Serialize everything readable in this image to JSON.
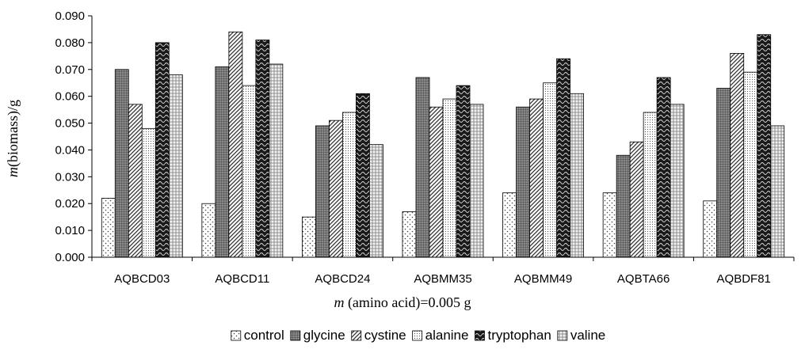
{
  "chart_data": {
    "type": "bar",
    "title": "",
    "xlabel": {
      "italic": "m",
      "rest": " (amino acid)=0.005 g"
    },
    "ylabel": {
      "italic": "m",
      "rest": "(biomass)/g"
    },
    "ylim": [
      0,
      0.09
    ],
    "yticks": [
      "0.000",
      "0.010",
      "0.020",
      "0.030",
      "0.040",
      "0.050",
      "0.060",
      "0.070",
      "0.080",
      "0.090"
    ],
    "grid": false,
    "legend_position": "bottom",
    "categories": [
      "AQBCD03",
      "AQBCD11",
      "AQBCD24",
      "AQBMM35",
      "AQBMM49",
      "AQBTA66",
      "AQBDF81"
    ],
    "series": [
      {
        "name": "control",
        "pattern": "dots-sparse",
        "values": [
          0.022,
          0.02,
          0.015,
          0.017,
          0.024,
          0.024,
          0.021
        ]
      },
      {
        "name": "glycine",
        "pattern": "dark-grid",
        "values": [
          0.07,
          0.071,
          0.049,
          0.067,
          0.056,
          0.038,
          0.063
        ]
      },
      {
        "name": "cystine",
        "pattern": "diagonal",
        "values": [
          0.057,
          0.084,
          0.051,
          0.056,
          0.059,
          0.043,
          0.076
        ]
      },
      {
        "name": "alanine",
        "pattern": "dots-fine",
        "values": [
          0.048,
          0.064,
          0.054,
          0.059,
          0.065,
          0.054,
          0.069
        ]
      },
      {
        "name": "tryptophan",
        "pattern": "dark-wave",
        "values": [
          0.08,
          0.081,
          0.061,
          0.064,
          0.074,
          0.067,
          0.083
        ]
      },
      {
        "name": "valine",
        "pattern": "light-grid",
        "values": [
          0.068,
          0.072,
          0.042,
          0.057,
          0.061,
          0.057,
          0.049
        ]
      }
    ]
  }
}
